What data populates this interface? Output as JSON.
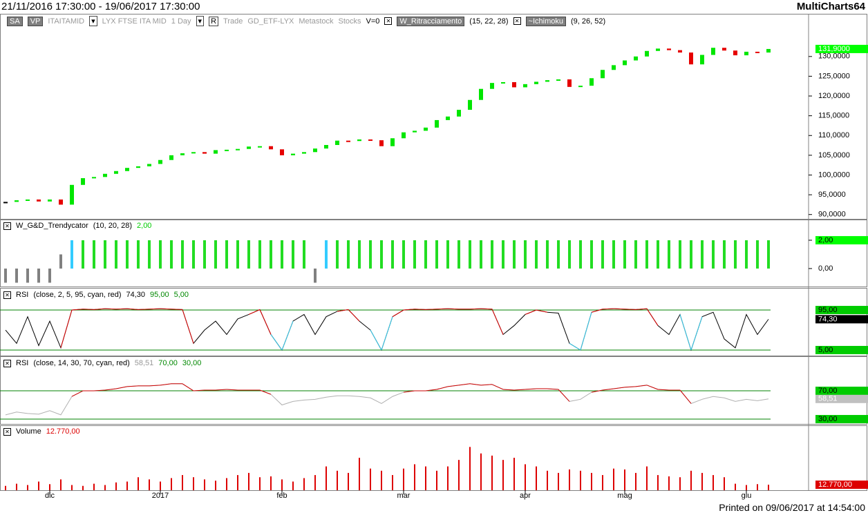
{
  "header": {
    "range": "21/11/2016 17:30:00 - 19/06/2017 17:30:00",
    "app": "MultiCharts64"
  },
  "toolbar": [
    "SA",
    "VP",
    "ITAITAMID",
    "LYX FTSE ITA MID",
    "1 Day",
    "R",
    "Trade",
    "GD_ETF-LYX",
    "Metastock",
    "Stocks",
    "V=0",
    "W_Ritracciamento",
    "(15, 22, 28)",
    "~Ichimoku",
    "(9, 26, 52)"
  ],
  "price": {
    "type": "candlestick",
    "closes": [
      93.2,
      93.6,
      93.8,
      93.3,
      93.8,
      92.5,
      97.5,
      99.2,
      99.5,
      100.3,
      101,
      101.8,
      102.2,
      102.8,
      103.8,
      105,
      105.5,
      105.8,
      105.4,
      106.3,
      106.4,
      106.6,
      107.2,
      107.3,
      106.5,
      105,
      105.4,
      105.8,
      106.7,
      107.6,
      108.7,
      108.6,
      109,
      108.8,
      107.3,
      109.3,
      110.8,
      111.2,
      112,
      113.9,
      114.8,
      116.5,
      119,
      121.8,
      123.3,
      123.5,
      122.2,
      123,
      123.6,
      124,
      124.2,
      122.3,
      122.6,
      124.5,
      126.6,
      127.8,
      129,
      130,
      131.4,
      132,
      131.6,
      131,
      128,
      130.4,
      132.2,
      131.5,
      130.3,
      131.2,
      131,
      131.9
    ],
    "ylim": [
      88.9,
      140.8
    ],
    "yticks": [
      {
        "value": 90,
        "label": "90,0000"
      },
      {
        "value": 95,
        "label": "95,0000"
      },
      {
        "value": 100,
        "label": "100,0000"
      },
      {
        "value": 105,
        "label": "105,0000"
      },
      {
        "value": 110,
        "label": "110,0000"
      },
      {
        "value": 115,
        "label": "115,0000"
      },
      {
        "value": 120,
        "label": "120,0000"
      },
      {
        "value": 125,
        "label": "125,0000"
      },
      {
        "value": 130,
        "label": "130,0000"
      }
    ],
    "last_label": "131,9000",
    "up_color": "#00e600",
    "down_color": "#e60000",
    "tag_color": "#00ff00"
  },
  "trend": {
    "type": "bar",
    "title": "W_G&D_Trendycator",
    "params": "(10, 20, 28)",
    "last_label": "2,00",
    "values": [
      -1,
      -1,
      -1,
      -1,
      -1,
      1,
      2,
      2,
      2,
      2,
      2,
      2,
      2,
      2,
      2,
      2,
      2,
      2,
      2,
      2,
      2,
      2,
      2,
      2,
      2,
      2,
      2,
      2,
      -1,
      2,
      2,
      2,
      2,
      2,
      2,
      2,
      2,
      2,
      2,
      2,
      2,
      2,
      2,
      2,
      2,
      2,
      2,
      2,
      2,
      2,
      2,
      2,
      2,
      2,
      2,
      2,
      2,
      2,
      2,
      2,
      2,
      2,
      2,
      2,
      2,
      2,
      2,
      2,
      2,
      2
    ],
    "ylim": [
      -1.27,
      3.46
    ],
    "yticks": [
      {
        "value": 0,
        "label": "0,00"
      },
      {
        "value": 2,
        "label": "2,00"
      }
    ],
    "up_color": "#22dd22",
    "other_color": "#808080",
    "turn_color": "#33ccff"
  },
  "rsi_fast": {
    "type": "line",
    "title": "RSI",
    "params": "(close, 2, 5, 95, cyan, red)",
    "last_label": "74,30",
    "values": [
      50,
      20,
      80,
      15,
      70,
      10,
      95,
      97,
      96,
      98,
      97,
      98,
      96,
      97,
      98,
      97,
      96,
      20,
      50,
      70,
      40,
      75,
      85,
      96,
      40,
      5,
      70,
      85,
      40,
      80,
      92,
      96,
      70,
      50,
      5,
      80,
      95,
      97,
      96,
      97,
      98,
      97,
      97,
      98,
      97,
      40,
      60,
      85,
      95,
      90,
      88,
      20,
      5,
      90,
      97,
      98,
      97,
      96,
      98,
      60,
      40,
      85,
      5,
      80,
      90,
      30,
      10,
      85,
      40,
      74.3
    ],
    "ylim": [
      -7.4,
      144.7
    ],
    "levels": [
      {
        "value": 95,
        "label": "95,00"
      },
      {
        "value": 5,
        "label": "5,00"
      }
    ],
    "color": "#000000",
    "high_color": "#dd0000",
    "low_color": "#33ccee",
    "last_bg": "#000000"
  },
  "rsi_slow": {
    "type": "line",
    "title": "RSI",
    "params": "(close, 14, 30, 70, cyan, red)",
    "last_label": "58,51",
    "values": [
      36,
      40,
      38,
      37,
      42,
      36,
      62,
      70,
      70,
      71,
      73,
      76,
      77,
      77,
      78,
      80,
      80,
      70,
      71,
      71,
      72,
      71,
      71,
      71,
      65,
      50,
      55,
      57,
      58,
      61,
      63,
      63,
      62,
      60,
      52,
      62,
      68,
      70,
      70,
      72,
      76,
      78,
      80,
      78,
      79,
      72,
      71,
      72,
      73,
      73,
      72,
      55,
      58,
      68,
      71,
      73,
      75,
      76,
      78,
      72,
      71,
      71,
      52,
      58,
      62,
      60,
      55,
      58,
      56,
      58.51
    ],
    "ylim": [
      23.2,
      118.8
    ],
    "levels": [
      {
        "value": 70,
        "label": "70,00"
      },
      {
        "value": 30,
        "label": "30,00"
      }
    ],
    "color": "#b0b0b0",
    "high_color": "#cc0000",
    "low_color": "#33ccee",
    "last_bg": "#c0c0c0"
  },
  "volume": {
    "type": "bar",
    "title": "Volume",
    "last_label": "12.770,00",
    "values": [
      10000,
      15000,
      12000,
      20000,
      14000,
      25000,
      12000,
      10000,
      15000,
      12000,
      18000,
      20000,
      30000,
      25000,
      20000,
      28000,
      35000,
      30000,
      25000,
      22000,
      28000,
      35000,
      40000,
      30000,
      32000,
      25000,
      20000,
      28000,
      35000,
      55000,
      45000,
      40000,
      75000,
      50000,
      45000,
      35000,
      50000,
      60000,
      55000,
      45000,
      55000,
      70000,
      100000,
      85000,
      80000,
      70000,
      75000,
      60000,
      55000,
      45000,
      40000,
      48000,
      45000,
      40000,
      35000,
      50000,
      48000,
      40000,
      55000,
      35000,
      32000,
      30000,
      45000,
      40000,
      35000,
      30000,
      15000,
      12000,
      14000,
      12770
    ],
    "ylim": [
      0,
      150000
    ],
    "color": "#dd0000"
  },
  "time_axis": [
    {
      "index": 4,
      "label": "dic"
    },
    {
      "index": 14,
      "label": "2017"
    },
    {
      "index": 25,
      "label": "feb"
    },
    {
      "index": 36,
      "label": "mar"
    },
    {
      "index": 47,
      "label": "apr"
    },
    {
      "index": 56,
      "label": "mag"
    },
    {
      "index": 67,
      "label": "giu"
    }
  ],
  "footer": "Printed on 09/06/2017 at 14:54:00"
}
